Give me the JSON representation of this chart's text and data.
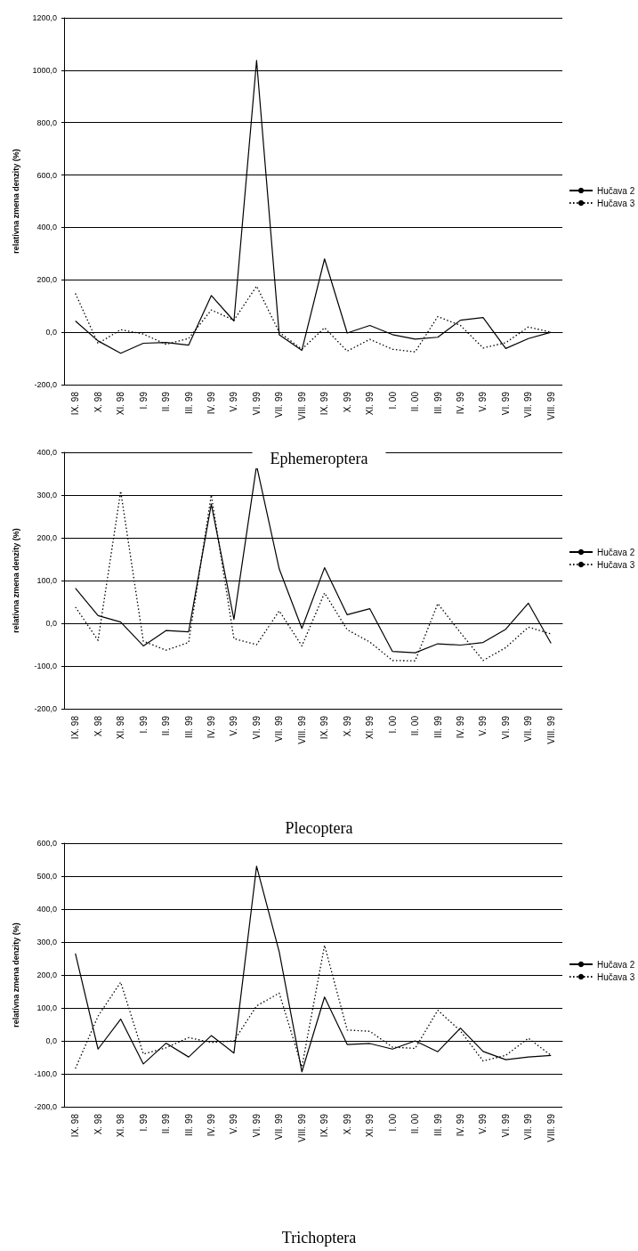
{
  "chart_data": [
    {
      "type": "line",
      "title": "Ephemeroptera",
      "ylabel": "relatívna zmena denzity (%)",
      "categories": [
        "IX. 98",
        "X. 98",
        "XI. 98",
        "I. 99",
        "II. 99",
        "III. 99",
        "IV. 99",
        "V. 99",
        "VI. 99",
        "VII. 99",
        "VIII. 99",
        "IX. 99",
        "X. 99",
        "XI. 99",
        "I. 00",
        "II. 00",
        "III. 99",
        "IV. 99",
        "V. 99",
        "VI. 99",
        "VII. 99",
        "VIII. 99"
      ],
      "series": [
        {
          "name": "Hučava 2",
          "color": "#000000",
          "line_style": "solid",
          "values": [
            43,
            -33,
            -80,
            -42,
            -39,
            -49,
            140,
            43,
            1037,
            -10,
            -69,
            280,
            -3,
            26,
            -9,
            -26,
            -19,
            46,
            56,
            -62,
            -24,
            0
          ]
        },
        {
          "name": "Hučava 3",
          "color": "#000000",
          "line_style": "dotted",
          "values": [
            148,
            -43,
            10,
            -7,
            -46,
            -24,
            85,
            46,
            176,
            0,
            -65,
            17,
            -72,
            -27,
            -65,
            -75,
            60,
            26,
            -60,
            -40,
            20,
            0
          ]
        }
      ],
      "ylim": [
        -200,
        1200
      ],
      "yticks": [
        {
          "value": -200,
          "label": "-200,0"
        },
        {
          "value": 0,
          "label": "0,0"
        },
        {
          "value": 200,
          "label": "200,0"
        },
        {
          "value": 400,
          "label": "400,0"
        },
        {
          "value": 600,
          "label": "600,0"
        },
        {
          "value": 800,
          "label": "800,0"
        },
        {
          "value": 1000,
          "label": "1000,0"
        },
        {
          "value": 1200,
          "label": "1200,0"
        }
      ],
      "grid": "y",
      "legend": "right",
      "marker": "none"
    },
    {
      "type": "line",
      "title": "Plecoptera",
      "ylabel": "relatívna zmena denzity (%)",
      "categories": [
        "IX. 98",
        "X. 98",
        "XI. 98",
        "I. 99",
        "II. 99",
        "III. 99",
        "IV. 99",
        "V. 99",
        "VI. 99",
        "VII. 99",
        "VIII. 99",
        "IX. 99",
        "X. 99",
        "XI. 99",
        "I. 00",
        "II. 00",
        "III. 99",
        "IV. 99",
        "V. 99",
        "VI. 99",
        "VII. 99",
        "VIII. 99"
      ],
      "series": [
        {
          "name": "Hučava 2",
          "color": "#000000",
          "line_style": "solid",
          "values": [
            82,
            18,
            3,
            -53,
            -17,
            -20,
            279,
            9,
            369,
            127,
            -12,
            130,
            20,
            34,
            -66,
            -69,
            -48,
            -51,
            -45,
            -14,
            47,
            -47
          ]
        },
        {
          "name": "Hučava 3",
          "color": "#000000",
          "line_style": "dotted",
          "values": [
            38,
            -40,
            309,
            -42,
            -63,
            -45,
            300,
            -36,
            -50,
            29,
            -53,
            71,
            -15,
            -44,
            -87,
            -88,
            46,
            -22,
            -87,
            -57,
            -9,
            -25
          ]
        }
      ],
      "ylim": [
        -200,
        400
      ],
      "yticks": [
        {
          "value": -200,
          "label": "-200,0"
        },
        {
          "value": -100,
          "label": "-100,0"
        },
        {
          "value": 0,
          "label": "0,0"
        },
        {
          "value": 100,
          "label": "100,0"
        },
        {
          "value": 200,
          "label": "200,0"
        },
        {
          "value": 300,
          "label": "300,0"
        },
        {
          "value": 400,
          "label": "400,0"
        }
      ],
      "grid": "y",
      "legend": "right",
      "marker": "none"
    },
    {
      "type": "line",
      "title": "Trichoptera",
      "ylabel": "relatívna zmena denzity (%)",
      "categories": [
        "IX. 98",
        "X. 98",
        "XI. 98",
        "I. 99",
        "II. 99",
        "III. 99",
        "IV. 99",
        "V. 99",
        "VI. 99",
        "VII. 99",
        "VIII. 99",
        "IX. 99",
        "X. 99",
        "XI. 99",
        "I. 00",
        "II. 00",
        "III. 99",
        "IV. 99",
        "V. 99",
        "VI. 99",
        "VII. 99",
        "VIII. 99"
      ],
      "series": [
        {
          "name": "Hučava 2",
          "color": "#000000",
          "line_style": "solid",
          "values": [
            265,
            -25,
            66,
            -70,
            -7,
            -49,
            16,
            -37,
            530,
            270,
            -94,
            133,
            -11,
            -8,
            -25,
            0,
            -33,
            39,
            -32,
            -57,
            -49,
            -44
          ]
        },
        {
          "name": "Hučava 3",
          "color": "#000000",
          "line_style": "dotted",
          "values": [
            -84,
            75,
            178,
            -40,
            -21,
            10,
            -5,
            0,
            106,
            145,
            -79,
            290,
            33,
            29,
            -19,
            -23,
            93,
            30,
            -61,
            -44,
            8,
            -44
          ]
        }
      ],
      "ylim": [
        -200,
        600
      ],
      "yticks": [
        {
          "value": -200,
          "label": "-200,0"
        },
        {
          "value": -100,
          "label": "-100,0"
        },
        {
          "value": 0,
          "label": "0,0"
        },
        {
          "value": 100,
          "label": "100,0"
        },
        {
          "value": 200,
          "label": "200,0"
        },
        {
          "value": 300,
          "label": "300,0"
        },
        {
          "value": 400,
          "label": "400,0"
        },
        {
          "value": 500,
          "label": "500,0"
        },
        {
          "value": 600,
          "label": "600,0"
        }
      ],
      "grid": "y",
      "legend": "right",
      "marker": "none"
    }
  ]
}
